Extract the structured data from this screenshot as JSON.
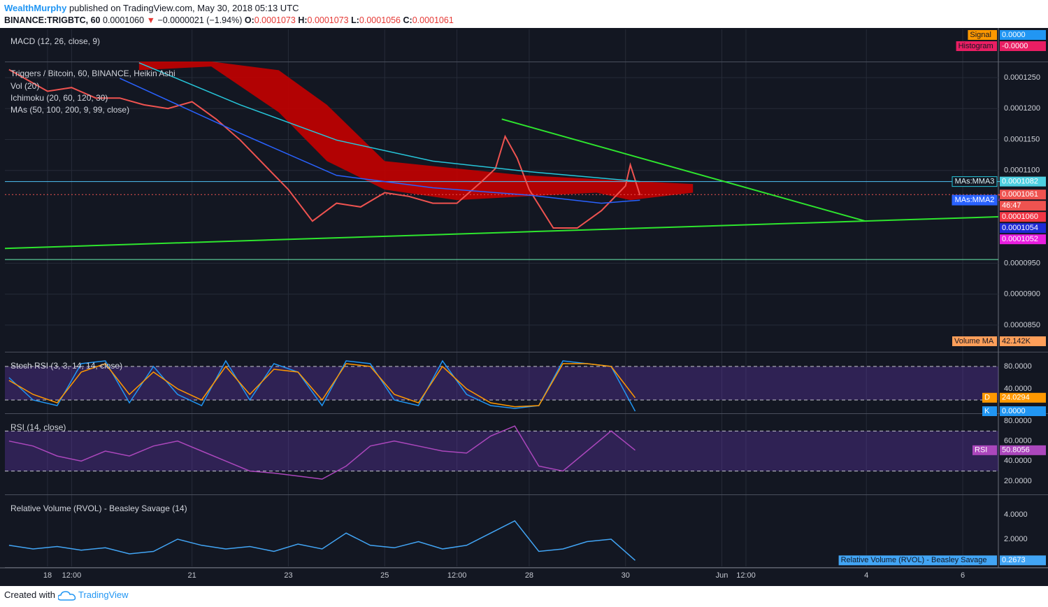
{
  "header": {
    "author": "WealthMurphy",
    "published": "published on TradingView.com, May 30, 2018 05:13 UTC",
    "symbol": "BINANCE:TRIGBTC, 60",
    "last": "0.0001060",
    "arrow": "▼",
    "change": "−0.0000021 (−1.94%)",
    "ohlc": [
      {
        "key": "O:",
        "value": "0.0001073"
      },
      {
        "key": "H:",
        "value": "0.0001073"
      },
      {
        "key": "L:",
        "value": "0.0001056"
      },
      {
        "key": "C:",
        "value": "0.0001061"
      }
    ]
  },
  "footer": {
    "created": "Created with",
    "brand": "TradingView"
  },
  "chart_data": [
    {
      "type": "line",
      "title": "MACD (12, 26, close, 9)",
      "series": [
        {
          "name": "Signal",
          "color": "#ff9800",
          "last": "0.0000"
        },
        {
          "name": "Histogram",
          "color": "#e91e63",
          "last": "-0.0000"
        }
      ]
    },
    {
      "type": "line",
      "title": "Triggers / Bitcoin, 60, BINANCE, Heikin Ashi",
      "indicators": [
        "Vol (20)",
        "Ichimoku (20, 60, 120, 30)",
        "MAs (50, 100, 200, 9, 99, close)"
      ],
      "xlim": [
        17.115,
        37.74
      ],
      "xticks": [
        18,
        {
          "value": 18.5,
          "label": "12:00"
        },
        21,
        23,
        25,
        {
          "value": 26.5,
          "label": "12:00"
        },
        28,
        30,
        {
          "value": 32,
          "label": "Jun"
        },
        {
          "value": 32.5,
          "label": "12:00"
        },
        {
          "value": 35,
          "label": "4"
        },
        {
          "value": 37,
          "label": "6"
        }
      ],
      "ylim": [
        8.08e-05,
        0.0001276
      ],
      "yticks": [
        {
          "value": 8.5e-05,
          "label": "0.0000850"
        },
        {
          "value": 9e-05,
          "label": "0.0000900"
        },
        {
          "value": 9.5e-05,
          "label": "0.0000950"
        },
        {
          "value": 0.00011,
          "label": "0.0001100"
        },
        {
          "value": 0.000115,
          "label": "0.0001150"
        },
        {
          "value": 0.00012,
          "label": "0.0001200"
        },
        {
          "value": 0.000125,
          "label": "0.0001250"
        }
      ],
      "grid": true,
      "cloud": {
        "color": "#c40000",
        "x": [
          19.9,
          21.4,
          22.8,
          23.8,
          25.0,
          26.5,
          27.9,
          29.4,
          30.1,
          31.4
        ],
        "top": [
          0.0001276,
          0.0001276,
          0.0001262,
          0.0001206,
          0.0001115,
          0.0001103,
          0.0001092,
          0.0001086,
          0.0001083,
          0.0001078
        ],
        "bottom": [
          0.0001262,
          0.0001268,
          0.0001194,
          0.0001115,
          0.0001069,
          0.0001052,
          0.0001058,
          0.0001064,
          0.0001052,
          0.0001064
        ]
      },
      "hlines": [
        {
          "value": 0.0001082,
          "color": "#4fc3f7"
        },
        {
          "value": 0.0001061,
          "color": "#ef5350"
        },
        {
          "value": 9.56e-05,
          "color": "#69f0ae"
        }
      ],
      "series": [
        {
          "color": "#ef5350",
          "x": [
            17.2,
            18,
            18.5,
            19,
            19.5,
            20,
            20.5,
            21,
            21.5,
            22,
            22.5,
            23,
            23.5,
            24,
            24.5,
            25,
            25.5,
            26,
            26.5,
            27,
            27.3,
            27.5,
            27.75,
            28,
            28.5,
            29,
            29.5,
            30,
            30.1,
            30.3
          ],
          "values": [
            0.0001263,
            0.0001228,
            0.0001234,
            0.0001217,
            0.0001217,
            0.0001206,
            0.00012,
            0.0001211,
            0.0001183,
            0.0001149,
            0.0001109,
            0.0001069,
            0.0001018,
            0.0001047,
            0.0001041,
            0.0001064,
            0.0001058,
            0.0001047,
            0.0001047,
            0.0001081,
            0.0001103,
            0.0001155,
            0.000112,
            0.0001069,
            0.0001007,
            0.0001007,
            0.0001035,
            0.0001075,
            0.0001109,
            0.000106
          ]
        },
        {
          "name": "MAs:MMA3",
          "color": "#26c6da",
          "x": [
            19.9,
            22,
            24,
            26,
            28,
            30.3
          ],
          "values": [
            0.0001274,
            0.0001206,
            0.0001149,
            0.0001115,
            0.0001098,
            0.0001082
          ]
        },
        {
          "name": "MAs:MMA2",
          "color": "#2962ff",
          "x": [
            19.5,
            22,
            24,
            26,
            28,
            29.5,
            30.3
          ],
          "values": [
            0.0001249,
            0.000116,
            0.0001092,
            0.0001072,
            0.000106,
            0.0001047,
            0.0001052
          ]
        },
        {
          "color": "#2ee62e",
          "x": [
            17.115,
            37.74
          ],
          "values": [
            9.74e-05,
            0.0001025
          ]
        },
        {
          "color": "#2ee62e",
          "x": [
            27.43,
            34.98
          ],
          "values": [
            0.0001183,
            0.0001018
          ]
        }
      ],
      "price_labels": [
        {
          "value": 0.0001082,
          "label": "0.0001082",
          "color": "#4dd0e1"
        },
        {
          "value": 0.0001061,
          "label": "0.0001061",
          "color": "#ef5350"
        },
        {
          "label": "46:47",
          "color": "#ef5350"
        },
        {
          "value": 0.000106,
          "label": "0.0001060",
          "color": "#f23645"
        },
        {
          "value": 0.0001054,
          "label": "0.0001054",
          "color": "#1f2bd6"
        },
        {
          "value": 0.0001052,
          "label": "0.0001052",
          "color": "#e91ee0"
        }
      ],
      "volume_ma": {
        "label": "Volume MA",
        "value_label": "42.142K",
        "color": "#ff9f5a"
      }
    },
    {
      "type": "line",
      "title": "Stoch RSI (3, 3, 14, 14, close)",
      "ylim": [
        -2.5,
        102.5
      ],
      "yticks": [
        {
          "value": 80,
          "label": "80.0000"
        },
        {
          "value": 40,
          "label": "40.0000"
        }
      ],
      "band": [
        20,
        80
      ],
      "series": [
        {
          "name": "K",
          "color": "#2196f3",
          "x": [
            17.2,
            17.7,
            18.2,
            18.7,
            19.2,
            19.7,
            20.2,
            20.7,
            21.2,
            21.7,
            22.2,
            22.7,
            23.2,
            23.7,
            24.2,
            24.7,
            25.2,
            25.7,
            26.2,
            26.7,
            27.2,
            27.7,
            28.2,
            28.7,
            29.2,
            29.7,
            30.2
          ],
          "values": [
            60,
            20,
            10,
            85,
            90,
            15,
            80,
            30,
            10,
            90,
            20,
            85,
            70,
            10,
            90,
            85,
            20,
            10,
            90,
            30,
            10,
            5,
            10,
            90,
            85,
            80,
            0
          ],
          "last": "0.0000"
        },
        {
          "name": "D",
          "color": "#ff9800",
          "x": [
            17.2,
            17.7,
            18.2,
            18.7,
            19.2,
            19.7,
            20.2,
            20.7,
            21.2,
            21.7,
            22.2,
            22.7,
            23.2,
            23.7,
            24.2,
            24.7,
            25.2,
            25.7,
            26.2,
            26.7,
            27.2,
            27.7,
            28.2,
            28.7,
            29.2,
            29.7,
            30.2
          ],
          "values": [
            55,
            30,
            15,
            70,
            85,
            30,
            70,
            40,
            20,
            80,
            30,
            75,
            70,
            20,
            85,
            80,
            30,
            15,
            80,
            40,
            15,
            8,
            10,
            85,
            85,
            80,
            24.0294
          ],
          "last": "24.0294"
        }
      ]
    },
    {
      "type": "line",
      "title": "RSI (14, close)",
      "ylim": [
        7.4,
        85.6
      ],
      "yticks": [
        {
          "value": 80,
          "label": "80.0000"
        },
        {
          "value": 60,
          "label": "60.0000"
        },
        {
          "value": 40,
          "label": "40.0000"
        },
        {
          "value": 20,
          "label": "20.0000"
        }
      ],
      "band": [
        30,
        70
      ],
      "series": [
        {
          "name": "RSI",
          "color": "#ab47bc",
          "x": [
            17.2,
            17.7,
            18.2,
            18.7,
            19.2,
            19.7,
            20.2,
            20.7,
            21.2,
            21.7,
            22.2,
            22.7,
            23.2,
            23.7,
            24.2,
            24.7,
            25.2,
            25.7,
            26.2,
            26.7,
            27.2,
            27.7,
            28.2,
            28.7,
            29.2,
            29.7,
            30.2
          ],
          "values": [
            60,
            55,
            45,
            40,
            50,
            45,
            55,
            60,
            50,
            40,
            30,
            28,
            25,
            22,
            35,
            55,
            60,
            55,
            50,
            48,
            65,
            75,
            35,
            30,
            50,
            70,
            50.8056
          ],
          "last": "50.8056"
        }
      ]
    },
    {
      "type": "line",
      "title": "Relative Volume (RVOL) - Beasley Savage (14)",
      "ylim": [
        -0.23,
        5.49
      ],
      "yticks": [
        {
          "value": 2,
          "label": "2.0000"
        },
        {
          "value": 4,
          "label": "4.0000"
        }
      ],
      "series": [
        {
          "name": "Relative Volume (RVOL) - Beasley Savage",
          "color": "#42a5f5",
          "x": [
            17.2,
            17.7,
            18.2,
            18.7,
            19.2,
            19.7,
            20.2,
            20.7,
            21.2,
            21.7,
            22.2,
            22.7,
            23.2,
            23.7,
            24.2,
            24.7,
            25.2,
            25.7,
            26.2,
            26.7,
            27.2,
            27.7,
            28.2,
            28.7,
            29.2,
            29.7,
            30.2
          ],
          "values": [
            1.5,
            1.2,
            1.4,
            1.1,
            1.3,
            0.8,
            1.0,
            2.0,
            1.5,
            1.2,
            1.4,
            1.0,
            1.6,
            1.2,
            2.5,
            1.5,
            1.3,
            1.8,
            1.2,
            1.5,
            2.5,
            3.5,
            1.0,
            1.2,
            1.8,
            2.0,
            0.2673
          ],
          "last": "0.2673"
        }
      ]
    }
  ]
}
